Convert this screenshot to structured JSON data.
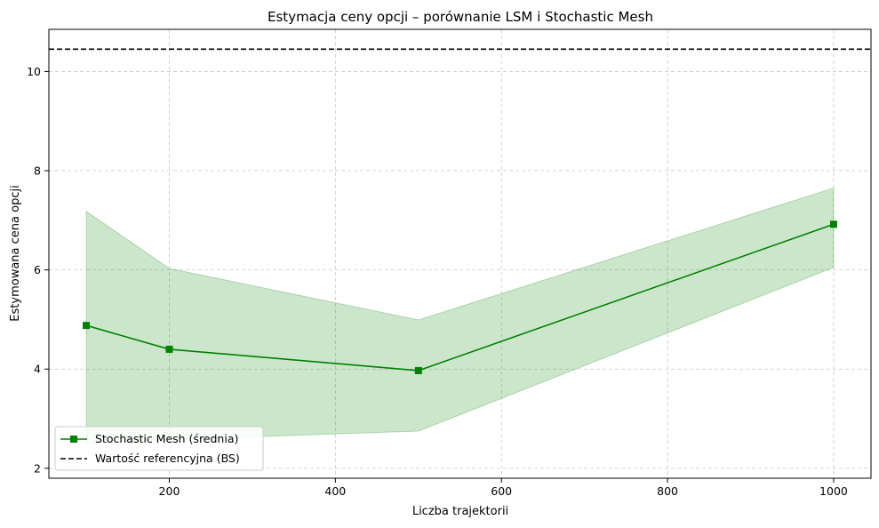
{
  "chart_data": {
    "type": "line",
    "title": "Estymacja ceny opcji – porównanie LSM i Stochastic Mesh",
    "xlabel": "Liczba trajektorii",
    "ylabel": "Estymowana cena opcji",
    "xlim": [
      55,
      1045
    ],
    "ylim": [
      1.8,
      10.85
    ],
    "xticks": [
      200,
      400,
      600,
      800,
      1000
    ],
    "yticks": [
      2,
      4,
      6,
      8,
      10
    ],
    "grid": true,
    "legend_position": "lower-left",
    "series": [
      {
        "name": "Stochastic Mesh (średnia)",
        "color": "#008000",
        "marker": "square",
        "x": [
          100,
          200,
          500,
          1000
        ],
        "y": [
          4.88,
          4.4,
          3.97,
          6.92
        ],
        "band_lower": [
          2.5,
          2.58,
          2.75,
          6.05
        ],
        "band_upper": [
          7.18,
          6.03,
          4.99,
          7.65
        ],
        "band_color": "#008000"
      }
    ],
    "reference_line": {
      "name": "Wartość referencyjna (BS)",
      "y": 10.45,
      "color": "#000000",
      "style": "dashed"
    }
  }
}
